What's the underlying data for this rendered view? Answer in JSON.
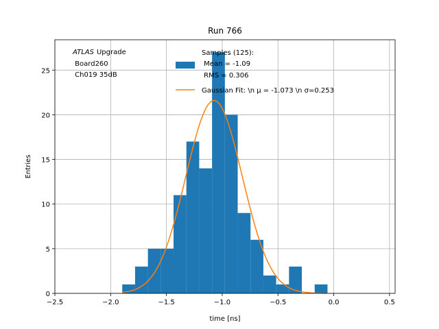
{
  "chart_data": {
    "type": "bar",
    "title": "Run 766",
    "xlabel": "time [ns]",
    "ylabel": "Entries",
    "xlim": [
      -2.5,
      0.55
    ],
    "ylim": [
      0,
      28.4
    ],
    "xticks": [
      -2.5,
      -2.0,
      -1.5,
      -1.0,
      -0.5,
      0.0,
      0.5
    ],
    "xtick_labels": [
      "−2.5",
      "−2.0",
      "−1.5",
      "−1.0",
      "−0.5",
      "0.0",
      "0.5"
    ],
    "yticks": [
      0,
      5,
      10,
      15,
      20,
      25
    ],
    "ytick_labels": [
      "0",
      "5",
      "10",
      "15",
      "20",
      "25"
    ],
    "grid": true,
    "histogram": {
      "bin_edges": [
        -1.896,
        -1.781,
        -1.666,
        -1.551,
        -1.436,
        -1.321,
        -1.206,
        -1.091,
        -0.976,
        -0.861,
        -0.746,
        -0.631,
        -0.516,
        -0.401,
        -0.286,
        -0.171,
        -0.056
      ],
      "counts": [
        1,
        3,
        5,
        5,
        11,
        17,
        14,
        27,
        20,
        9,
        6,
        2,
        1,
        3,
        0,
        1
      ],
      "color": "#1f77b4"
    },
    "fit": {
      "type": "gaussian",
      "mu": -1.073,
      "sigma": 0.253,
      "amplitude": 21.6,
      "x_range": [
        -1.896,
        -0.056
      ],
      "color": "#ff7f0e"
    },
    "legend": {
      "placement": "top-right",
      "entries": [
        {
          "kind": "bar",
          "lines": [
            "Samples (125):",
            " Mean = -1.09",
            " RMS = 0.306"
          ]
        },
        {
          "kind": "line",
          "lines": [
            "Gaussian Fit: \\n μ = -1.073 \\n σ=0.253"
          ]
        }
      ]
    },
    "annotation": {
      "italic_word": "ATLAS",
      "word": "Upgrade",
      "lines": [
        " Board260",
        " Ch019 35dB"
      ]
    }
  }
}
